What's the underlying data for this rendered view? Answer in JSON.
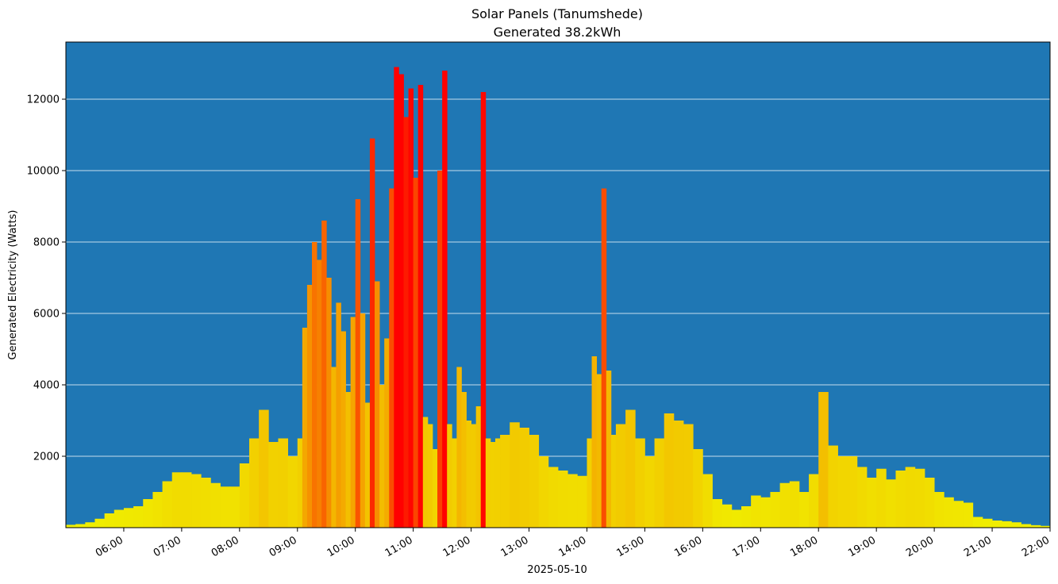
{
  "chart_data": {
    "type": "bar",
    "title": "Solar Panels (Tanumshede)",
    "subtitle": "Generated 38.2kWh",
    "xlabel": "2025-05-10",
    "ylabel": "Generated Electricity (Watts)",
    "xlim": [
      "05:00",
      "22:00"
    ],
    "ylim": [
      0,
      13600
    ],
    "x_ticks": [
      "06:00",
      "07:00",
      "08:00",
      "09:00",
      "10:00",
      "11:00",
      "12:00",
      "13:00",
      "14:00",
      "15:00",
      "16:00",
      "17:00",
      "18:00",
      "19:00",
      "20:00",
      "21:00",
      "22:00"
    ],
    "y_ticks": [
      2000,
      4000,
      6000,
      8000,
      10000,
      12000
    ],
    "grid": "horizontal",
    "background_color": "#1f77b4",
    "color_scale": [
      "#f0f000",
      "#f5a000",
      "#ff0000"
    ],
    "x": [
      "05:00",
      "05:10",
      "05:20",
      "05:30",
      "05:40",
      "05:50",
      "06:00",
      "06:10",
      "06:20",
      "06:30",
      "06:40",
      "06:50",
      "07:00",
      "07:10",
      "07:20",
      "07:30",
      "07:40",
      "07:50",
      "08:00",
      "08:10",
      "08:20",
      "08:30",
      "08:40",
      "08:50",
      "09:00",
      "09:05",
      "09:10",
      "09:15",
      "09:20",
      "09:25",
      "09:30",
      "09:35",
      "09:40",
      "09:45",
      "09:50",
      "09:55",
      "10:00",
      "10:05",
      "10:10",
      "10:15",
      "10:20",
      "10:25",
      "10:30",
      "10:35",
      "10:40",
      "10:45",
      "10:50",
      "10:55",
      "11:00",
      "11:05",
      "11:10",
      "11:15",
      "11:20",
      "11:25",
      "11:30",
      "11:35",
      "11:40",
      "11:45",
      "11:50",
      "11:55",
      "12:00",
      "12:05",
      "12:10",
      "12:15",
      "12:20",
      "12:25",
      "12:30",
      "12:40",
      "12:50",
      "13:00",
      "13:10",
      "13:20",
      "13:30",
      "13:40",
      "13:50",
      "14:00",
      "14:05",
      "14:10",
      "14:15",
      "14:20",
      "14:25",
      "14:30",
      "14:40",
      "14:50",
      "15:00",
      "15:10",
      "15:20",
      "15:30",
      "15:40",
      "15:50",
      "16:00",
      "16:10",
      "16:20",
      "16:30",
      "16:40",
      "16:50",
      "17:00",
      "17:10",
      "17:20",
      "17:30",
      "17:40",
      "17:50",
      "18:00",
      "18:10",
      "18:20",
      "18:30",
      "18:40",
      "18:50",
      "19:00",
      "19:10",
      "19:20",
      "19:30",
      "19:40",
      "19:50",
      "20:00",
      "20:10",
      "20:20",
      "20:30",
      "20:40",
      "20:50",
      "21:00",
      "21:10",
      "21:20",
      "21:30",
      "21:40",
      "21:50"
    ],
    "values": [
      80,
      100,
      150,
      250,
      400,
      500,
      550,
      600,
      800,
      1000,
      1300,
      1550,
      1550,
      1500,
      1400,
      1250,
      1150,
      1150,
      1800,
      2500,
      3300,
      2400,
      2500,
      2000,
      2500,
      5600,
      6800,
      8000,
      7500,
      8600,
      7000,
      4500,
      6300,
      5500,
      3800,
      5900,
      9200,
      6000,
      3500,
      10900,
      6900,
      4000,
      5300,
      9500,
      12900,
      12700,
      11500,
      12300,
      9800,
      12400,
      3100,
      2900,
      2200,
      10000,
      12800,
      2900,
      2500,
      4500,
      3800,
      3000,
      2900,
      3400,
      12200,
      2500,
      2400,
      2500,
      2600,
      2950,
      2800,
      2600,
      2000,
      1700,
      1600,
      1500,
      1450,
      2500,
      4800,
      4300,
      9500,
      4400,
      2600,
      2900,
      3300,
      2500,
      2000,
      2500,
      3200,
      3000,
      2900,
      2200,
      1500,
      800,
      650,
      500,
      600,
      900,
      850,
      1000,
      1250,
      1300,
      1000,
      1500,
      3800,
      2300,
      2000,
      2000,
      1700,
      1400,
      1650,
      1350,
      1600,
      1700,
      1650,
      1400,
      1000,
      850,
      750,
      700,
      300,
      250,
      200,
      180,
      150,
      100,
      70,
      50
    ]
  }
}
